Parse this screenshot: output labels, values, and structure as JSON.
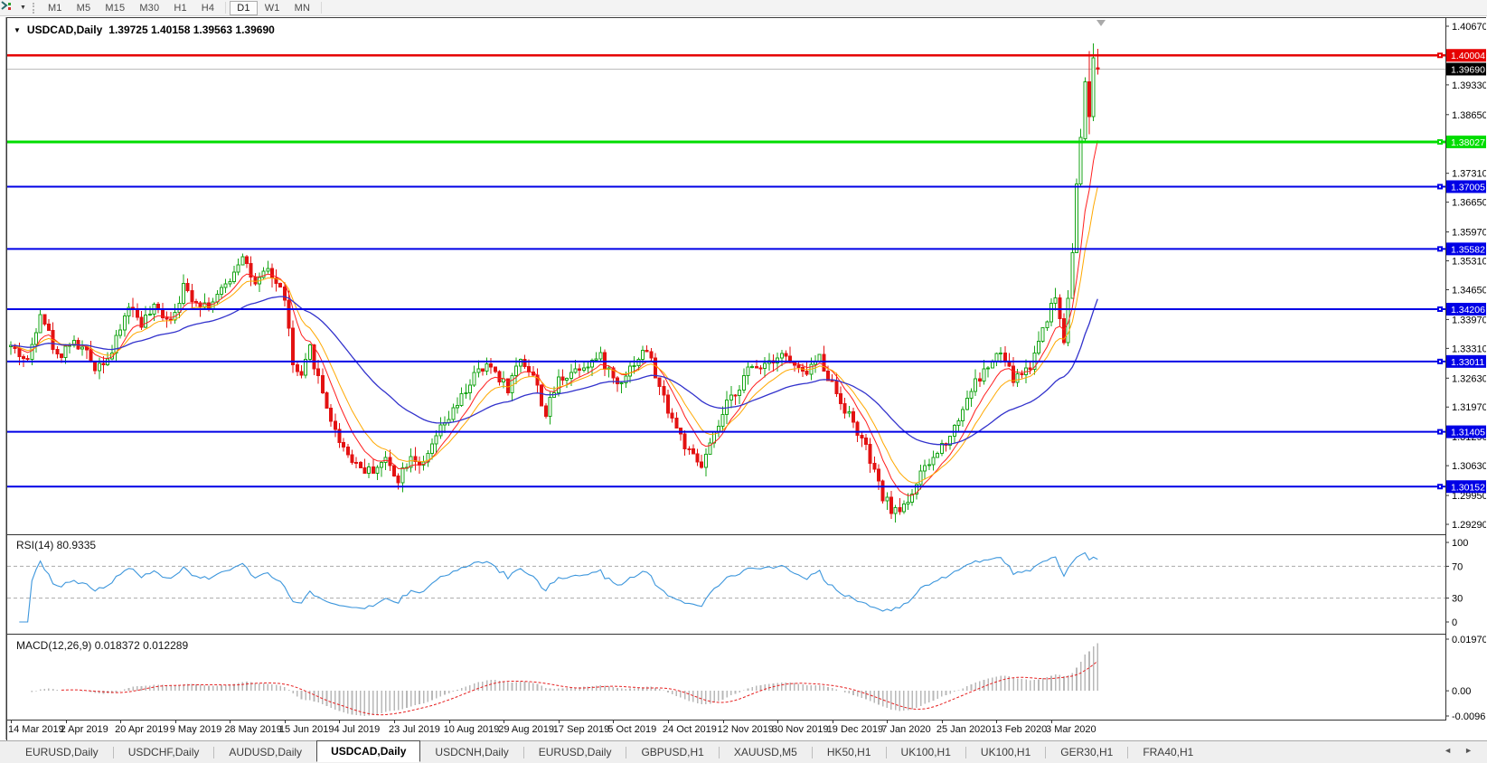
{
  "icons": {
    "collapse_triangle": "▼",
    "dropdown_caret": "▼",
    "tab_scroll_left": "◄",
    "tab_scroll_right": "►"
  },
  "toolbar": {
    "timeframes": [
      {
        "label": "M1",
        "active": false
      },
      {
        "label": "M5",
        "active": false
      },
      {
        "label": "M15",
        "active": false
      },
      {
        "label": "M30",
        "active": false
      },
      {
        "label": "H1",
        "active": false
      },
      {
        "label": "H4",
        "active": false
      },
      {
        "label": "D1",
        "active": true
      },
      {
        "label": "W1",
        "active": false
      },
      {
        "label": "MN",
        "active": false
      }
    ]
  },
  "chart": {
    "title_symbol": "USDCAD,Daily",
    "title_ohlc": "1.39725 1.40158 1.39563 1.39690"
  },
  "chart_data": {
    "type": "candlestick",
    "symbol": "USDCAD",
    "period": "Daily",
    "ohlc_last": {
      "open": 1.39725,
      "high": 1.40158,
      "low": 1.39563,
      "close": 1.3969
    },
    "price_axis": {
      "max": 1.4067,
      "min": 1.2929,
      "ticks": [
        1.4067,
        1.3933,
        1.3865,
        1.3731,
        1.3665,
        1.3597,
        1.3531,
        1.3465,
        1.3397,
        1.3331,
        1.3263,
        1.3197,
        1.3129,
        1.3063,
        1.2995,
        1.2929
      ]
    },
    "levels": [
      {
        "price": 1.40004,
        "label": "1.40004",
        "color": "#e60000",
        "width": 2.5
      },
      {
        "price": 1.38027,
        "label": "1.38027",
        "color": "#00dd00",
        "width": 3
      },
      {
        "price": 1.37005,
        "label": "1.37005",
        "color": "#0000e6",
        "width": 2
      },
      {
        "price": 1.35582,
        "label": "1.35582",
        "color": "#0000e6",
        "width": 2
      },
      {
        "price": 1.34206,
        "label": "1.34206",
        "color": "#0000e6",
        "width": 2
      },
      {
        "price": 1.33011,
        "label": "1.33011",
        "color": "#0000e6",
        "width": 2
      },
      {
        "price": 1.31405,
        "label": "1.31405",
        "color": "#0000e6",
        "width": 2
      },
      {
        "price": 1.30152,
        "label": "1.30152",
        "color": "#0000e6",
        "width": 2
      }
    ],
    "current_price": {
      "value": 1.3969,
      "label": "1.39690",
      "line_color": "#bdbdbd",
      "badge_color": "#000000"
    },
    "candles": {
      "count": 259,
      "up_color": "#17a517",
      "down_color": "#e31212",
      "seed": 42,
      "waypoints": [
        [
          0,
          1.3335
        ],
        [
          4,
          1.33
        ],
        [
          7,
          1.342
        ],
        [
          11,
          1.331
        ],
        [
          14,
          1.3345
        ],
        [
          17,
          1.333
        ],
        [
          20,
          1.329
        ],
        [
          24,
          1.332
        ],
        [
          28,
          1.343
        ],
        [
          31,
          1.339
        ],
        [
          34,
          1.342
        ],
        [
          38,
          1.34
        ],
        [
          41,
          1.347
        ],
        [
          44,
          1.344
        ],
        [
          47,
          1.343
        ],
        [
          50,
          1.346
        ],
        [
          52,
          1.349
        ],
        [
          55,
          1.355
        ],
        [
          58,
          1.347
        ],
        [
          61,
          1.351
        ],
        [
          65,
          1.345
        ],
        [
          67,
          1.329
        ],
        [
          69,
          1.326
        ],
        [
          71,
          1.333
        ],
        [
          74,
          1.323
        ],
        [
          77,
          1.314
        ],
        [
          80,
          1.309
        ],
        [
          83,
          1.306
        ],
        [
          85,
          1.305
        ],
        [
          89,
          1.3075
        ],
        [
          92,
          1.3035
        ],
        [
          95,
          1.309
        ],
        [
          98,
          1.306
        ],
        [
          101,
          1.313
        ],
        [
          106,
          1.32
        ],
        [
          110,
          1.327
        ],
        [
          114,
          1.329
        ],
        [
          118,
          1.324
        ],
        [
          121,
          1.331
        ],
        [
          124,
          1.327
        ],
        [
          127,
          1.318
        ],
        [
          130,
          1.326
        ],
        [
          135,
          1.329
        ],
        [
          140,
          1.331
        ],
        [
          144,
          1.325
        ],
        [
          148,
          1.33
        ],
        [
          151,
          1.333
        ],
        [
          154,
          1.324
        ],
        [
          158,
          1.315
        ],
        [
          161,
          1.309
        ],
        [
          164,
          1.306
        ],
        [
          167,
          1.313
        ],
        [
          170,
          1.32
        ],
        [
          175,
          1.328
        ],
        [
          179,
          1.33
        ],
        [
          183,
          1.332
        ],
        [
          188,
          1.327
        ],
        [
          192,
          1.331
        ],
        [
          196,
          1.323
        ],
        [
          200,
          1.316
        ],
        [
          203,
          1.31
        ],
        [
          207,
          1.299
        ],
        [
          210,
          1.2955
        ],
        [
          213,
          1.2985
        ],
        [
          216,
          1.304
        ],
        [
          219,
          1.308
        ],
        [
          224,
          1.315
        ],
        [
          228,
          1.324
        ],
        [
          232,
          1.329
        ],
        [
          235,
          1.332
        ],
        [
          238,
          1.326
        ],
        [
          242,
          1.329
        ],
        [
          245,
          1.338
        ],
        [
          248,
          1.345
        ],
        [
          250,
          1.335
        ],
        [
          252,
          1.356
        ],
        [
          253,
          1.37
        ],
        [
          254,
          1.381
        ],
        [
          255,
          1.386
        ],
        [
          256,
          1.379
        ],
        [
          257,
          1.392
        ],
        [
          258,
          1.3969
        ]
      ],
      "final_candles": [
        {
          "o": 1.381,
          "h": 1.395,
          "l": 1.38,
          "c": 1.394
        },
        {
          "o": 1.394,
          "h": 1.401,
          "l": 1.382,
          "c": 1.386
        },
        {
          "o": 1.386,
          "h": 1.4028,
          "l": 1.385,
          "c": 1.3995
        },
        {
          "o": 1.39725,
          "h": 1.40158,
          "l": 1.39563,
          "c": 1.3969
        }
      ]
    },
    "moving_averages": [
      {
        "period": 8,
        "color": "#ff1e1e",
        "width": 1
      },
      {
        "period": 13,
        "color": "#ffa800",
        "width": 1
      },
      {
        "period": 40,
        "color": "#3232cc",
        "width": 1.3
      }
    ],
    "date_axis": {
      "label_step": 13,
      "labels": [
        "14 Mar 2019",
        "2 Apr 2019",
        "20 Apr 2019",
        "9 May 2019",
        "28 May 2019",
        "15 Jun 2019",
        "4 Jul 2019",
        "23 Jul 2019",
        "10 Aug 2019",
        "29 Aug 2019",
        "17 Sep 2019",
        "5 Oct 2019",
        "24 Oct 2019",
        "12 Nov 2019",
        "30 Nov 2019",
        "19 Dec 2019",
        "7 Jan 2020",
        "25 Jan 2020",
        "13 Feb 2020",
        "3 Mar 2020"
      ]
    },
    "rsi": {
      "label": "RSI(14) 80.9335",
      "period": 14,
      "last_value": 80.9335,
      "line_color": "#3c96dc",
      "level_lines": [
        70,
        30
      ],
      "axis_ticks": [
        100,
        70,
        30,
        0
      ]
    },
    "macd": {
      "label": "MACD(12,26,9) 0.018372 0.012289",
      "fast": 12,
      "slow": 26,
      "signal_period": 9,
      "last_macd": 0.018372,
      "last_signal": 0.012289,
      "histogram_color": "#b8b8b8",
      "signal_color": "#e62020",
      "axis_ticks": [
        {
          "label": "0.019705",
          "value": 0.019705
        },
        {
          "label": "0.00",
          "value": 0.0
        },
        {
          "label": "-0.009614",
          "value": -0.009614
        }
      ]
    }
  },
  "tabs": {
    "items": [
      {
        "label": "EURUSD,Daily",
        "active": false
      },
      {
        "label": "USDCHF,Daily",
        "active": false
      },
      {
        "label": "AUDUSD,Daily",
        "active": false
      },
      {
        "label": "USDCAD,Daily",
        "active": true
      },
      {
        "label": "USDCNH,Daily",
        "active": false
      },
      {
        "label": "EURUSD,Daily",
        "active": false
      },
      {
        "label": "GBPUSD,H1",
        "active": false
      },
      {
        "label": "XAUUSD,M5",
        "active": false
      },
      {
        "label": "HK50,H1",
        "active": false
      },
      {
        "label": "UK100,H1",
        "active": false
      },
      {
        "label": "UK100,H1",
        "active": false
      },
      {
        "label": "GER30,H1",
        "active": false
      },
      {
        "label": "FRA40,H1",
        "active": false
      }
    ]
  }
}
